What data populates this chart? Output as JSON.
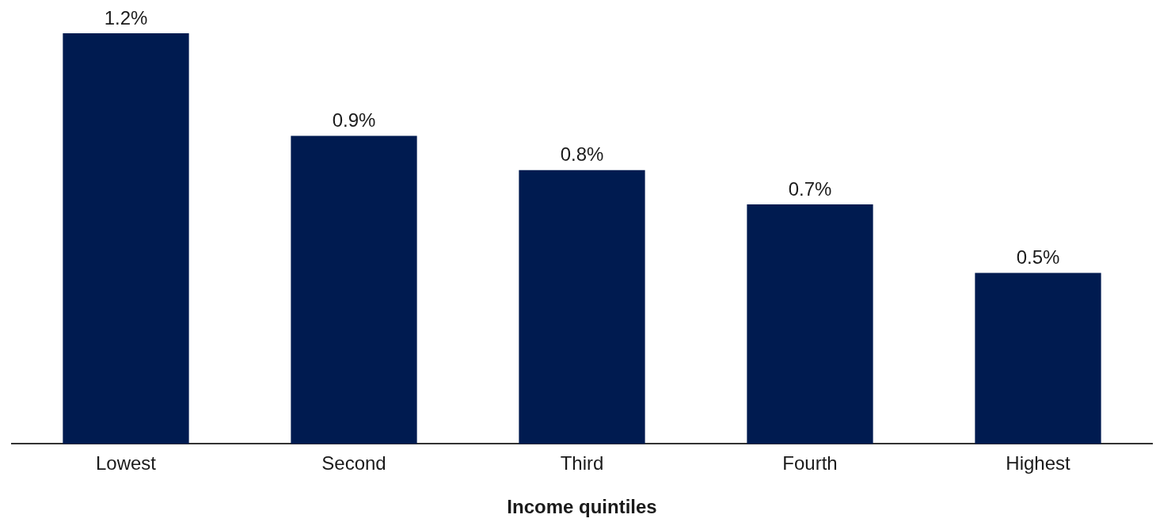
{
  "chart_data": {
    "type": "bar",
    "xlabel": "Income quintiles",
    "categories": [
      "Lowest",
      "Second",
      "Third",
      "Fourth",
      "Highest"
    ],
    "values": [
      1.2,
      0.9,
      0.8,
      0.7,
      0.5
    ],
    "value_labels": [
      "1.2%",
      "0.9%",
      "0.8%",
      "0.7%",
      "0.5%"
    ],
    "color": "#001b50"
  }
}
